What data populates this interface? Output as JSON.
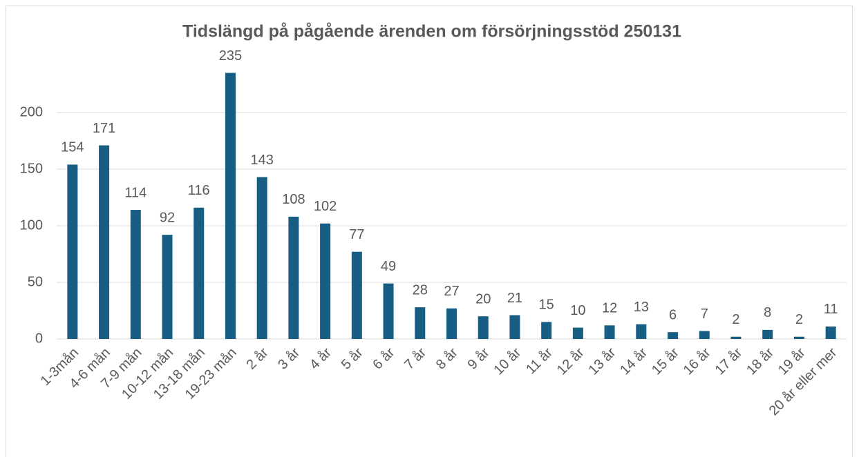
{
  "chart_data": {
    "type": "bar",
    "title": "Tidslängd på pågående ärenden om försörjningsstöd 250131",
    "categories": [
      "1-3mån",
      "4-6 mån",
      "7-9 mån",
      "10-12 mån",
      "13-18 mån",
      "19-23 mån",
      "2 år",
      "3 år",
      "4 år",
      "5 år",
      "6 år",
      "7 år",
      "8 år",
      "9 år",
      "10 år",
      "11 år",
      "12 år",
      "13 år",
      "14 år",
      "15 år",
      "16 år",
      "17 år",
      "18 år",
      "19 år",
      "20 år eller mer"
    ],
    "values": [
      154,
      171,
      114,
      92,
      116,
      235,
      143,
      108,
      102,
      77,
      49,
      28,
      27,
      20,
      21,
      15,
      10,
      12,
      13,
      6,
      7,
      2,
      8,
      2,
      11
    ],
    "color": "#175e82",
    "ylim": [
      0,
      250
    ],
    "yticks": [
      0,
      50,
      100,
      150,
      200
    ],
    "grid": true
  }
}
